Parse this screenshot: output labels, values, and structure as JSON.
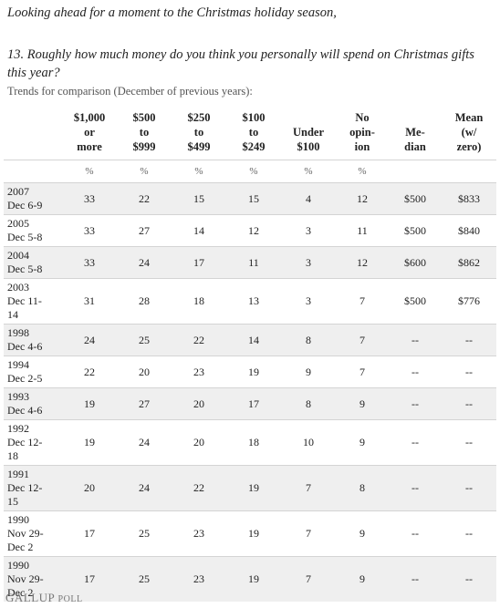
{
  "intro": "Looking ahead for a moment to the Christmas holiday season,",
  "question": "13. Roughly how much money do you think you personally will spend on Christmas gifts this year?",
  "note": "Trends for comparison (December of previous years):",
  "table": {
    "columns": [
      {
        "lines": [
          "$1,000",
          "or",
          "more"
        ]
      },
      {
        "lines": [
          "$500",
          "to",
          "$999"
        ]
      },
      {
        "lines": [
          "$250",
          "to",
          "$499"
        ]
      },
      {
        "lines": [
          "$100",
          "to",
          "$249"
        ]
      },
      {
        "lines": [
          "Under",
          "$100"
        ]
      },
      {
        "lines": [
          "No",
          "opin-",
          "ion"
        ]
      },
      {
        "lines": [
          "Me-",
          "dian"
        ]
      },
      {
        "lines": [
          "Mean",
          "(w/",
          "zero)"
        ]
      }
    ],
    "units": [
      "%",
      "%",
      "%",
      "%",
      "%",
      "%"
    ],
    "rows": [
      {
        "label": [
          "2007",
          "Dec 6-9"
        ],
        "cells": [
          33,
          22,
          15,
          15,
          4,
          12,
          "$500",
          "$833"
        ]
      },
      {
        "label": [
          "2005",
          "Dec 5-8"
        ],
        "cells": [
          33,
          27,
          14,
          12,
          3,
          11,
          "$500",
          "$840"
        ]
      },
      {
        "label": [
          "2004",
          "Dec 5-8"
        ],
        "cells": [
          33,
          24,
          17,
          11,
          3,
          12,
          "$600",
          "$862"
        ]
      },
      {
        "label": [
          "2003",
          "Dec 11-",
          "14"
        ],
        "cells": [
          31,
          28,
          18,
          13,
          3,
          7,
          "$500",
          "$776"
        ]
      },
      {
        "label": [
          "1998",
          "Dec 4-6"
        ],
        "cells": [
          24,
          25,
          22,
          14,
          8,
          7,
          "--",
          "--"
        ]
      },
      {
        "label": [
          "1994",
          "Dec 2-5"
        ],
        "cells": [
          22,
          20,
          23,
          19,
          9,
          7,
          "--",
          "--"
        ]
      },
      {
        "label": [
          "1993",
          "Dec 4-6"
        ],
        "cells": [
          19,
          27,
          20,
          17,
          8,
          9,
          "--",
          "--"
        ]
      },
      {
        "label": [
          "1992",
          "Dec 12-",
          "18"
        ],
        "cells": [
          19,
          24,
          20,
          18,
          10,
          9,
          "--",
          "--"
        ]
      },
      {
        "label": [
          "1991",
          "Dec 12-",
          "15"
        ],
        "cells": [
          20,
          24,
          22,
          19,
          7,
          8,
          "--",
          "--"
        ]
      },
      {
        "label": [
          "1990",
          "Nov 29-",
          "Dec 2"
        ],
        "cells": [
          17,
          25,
          23,
          19,
          7,
          9,
          "--",
          "--"
        ]
      },
      {
        "label": [
          "1990",
          "Nov 29-",
          "Dec 2"
        ],
        "cells": [
          17,
          25,
          23,
          19,
          7,
          9,
          "--",
          "--"
        ]
      }
    ]
  },
  "footer": {
    "brand": "GALLUP",
    "suffix": "POLL"
  }
}
